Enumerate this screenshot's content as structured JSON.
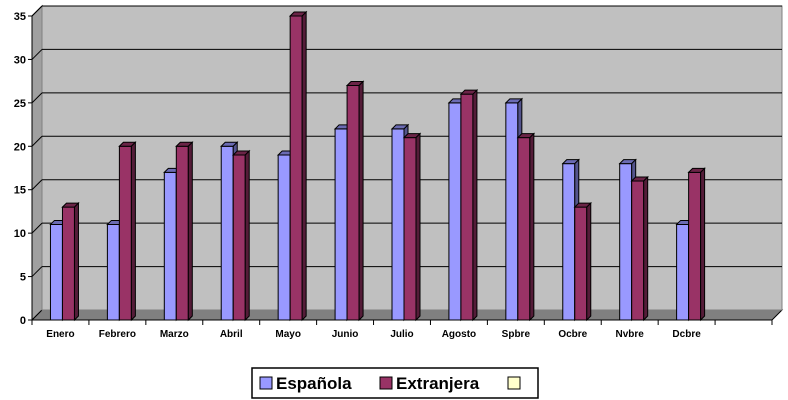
{
  "chart_data": {
    "type": "bar",
    "title": "",
    "xlabel": "",
    "ylabel": "",
    "ylim": [
      0,
      35
    ],
    "yticks": [
      0,
      5,
      10,
      15,
      20,
      25,
      30,
      35
    ],
    "grid": true,
    "three_d": true,
    "legend_position": "bottom",
    "categories": [
      "Enero",
      "Febrero",
      "Marzo",
      "Abril",
      "Mayo",
      "Junio",
      "Julio",
      "Agosto",
      "Spbre",
      "Ocbre",
      "Nvbre",
      "Dcbre"
    ],
    "series": [
      {
        "name": "Española",
        "color": "#9999ff",
        "values": [
          11,
          11,
          17,
          20,
          19,
          22,
          22,
          25,
          25,
          18,
          18,
          11
        ]
      },
      {
        "name": "Extranjera",
        "color": "#993366",
        "values": [
          13,
          20,
          20,
          19,
          35,
          27,
          21,
          26,
          21,
          13,
          16,
          17
        ]
      }
    ],
    "legend_extra_entry_color": "#ffffcc",
    "plot_background": "#c0c0c0"
  }
}
